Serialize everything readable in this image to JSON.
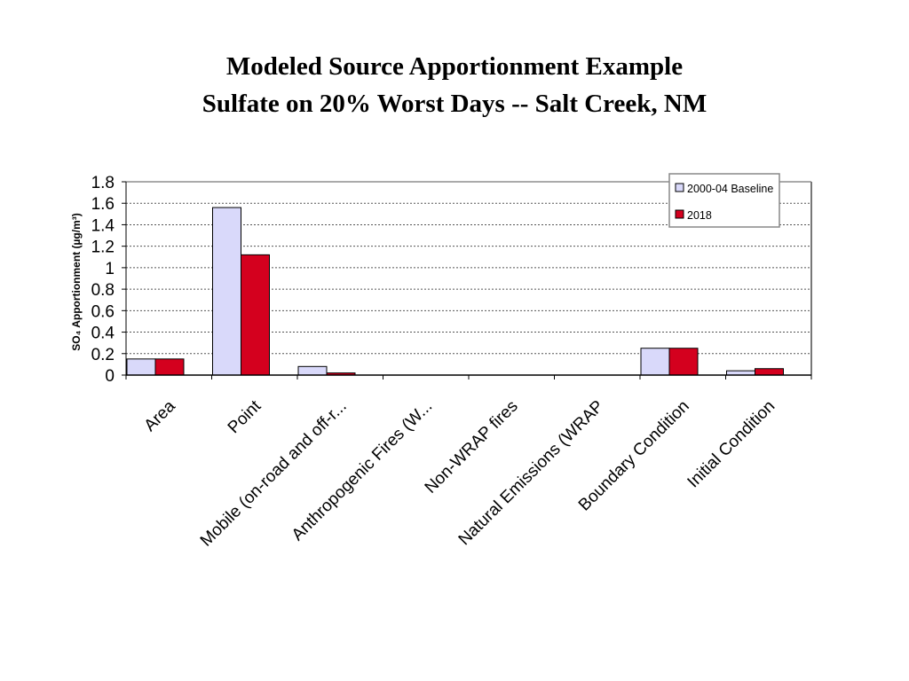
{
  "chart_data": {
    "type": "bar",
    "title": "Modeled Source Apportionment Example",
    "subtitle": "Sulfate on 20% Worst Days --  Salt Creek, NM",
    "ylabel": "SO₄ Apportionment (µg/m³)",
    "xlabel": "",
    "ylim": [
      0,
      1.8
    ],
    "yticks": [
      "0",
      "0.2",
      "0.4",
      "0.6",
      "0.8",
      "1",
      "1.2",
      "1.4",
      "1.6",
      "1.8"
    ],
    "categories": [
      "Area",
      "Point",
      "Mobile (on-road and off-r...",
      "Anthropogenic Fires (W...",
      "Non-WRAP fires",
      "Natural Emissions (WRAP",
      "Boundary Condition",
      "Initial Condition"
    ],
    "series": [
      {
        "name": "2000-04 Baseline",
        "color": "#d9d9fa",
        "values": [
          0.15,
          1.56,
          0.08,
          0,
          0,
          0,
          0.25,
          0.04
        ]
      },
      {
        "name": "2018",
        "color": "#d4001e",
        "values": [
          0.15,
          1.12,
          0.02,
          0,
          0,
          0,
          0.25,
          0.06
        ]
      }
    ],
    "grid": true,
    "grid_style": "dotted",
    "legend_position": "top-right"
  }
}
